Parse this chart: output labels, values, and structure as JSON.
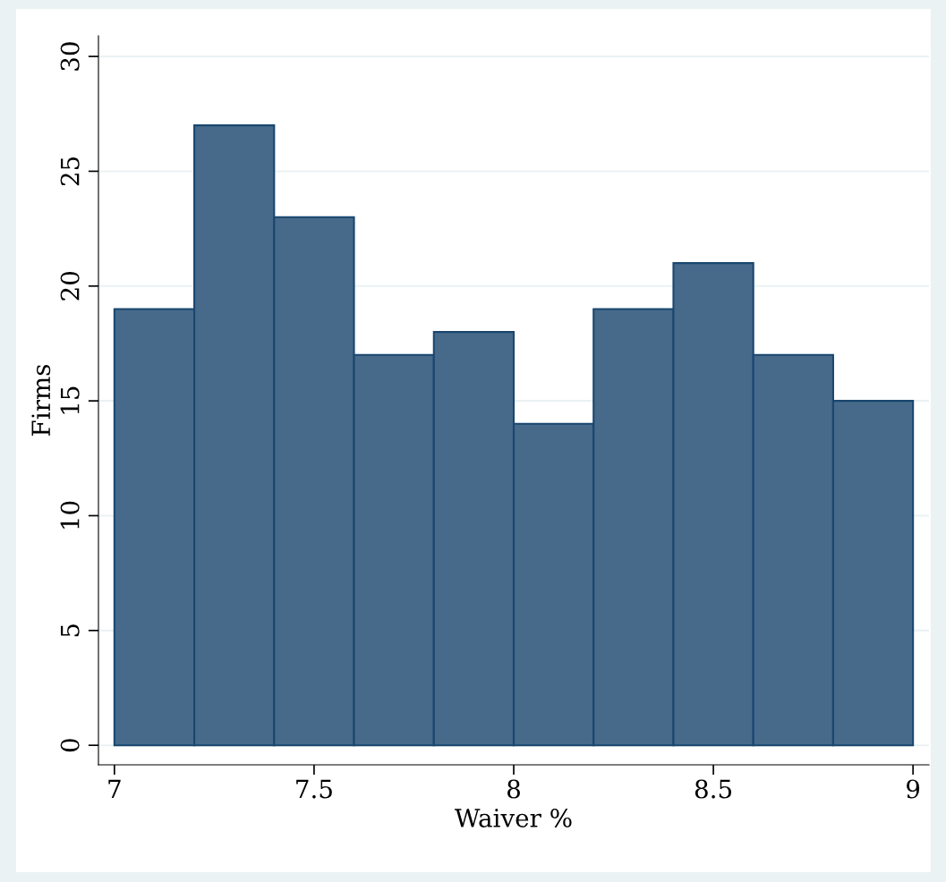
{
  "chart_data": {
    "type": "histogram",
    "xlabel": "Waiver %",
    "ylabel": "Firms",
    "bins": [
      7,
      7.2,
      7.4,
      7.6,
      7.8,
      8,
      8.2,
      8.4,
      8.6,
      8.8,
      9
    ],
    "values": [
      19,
      27,
      23,
      17,
      18,
      14,
      19,
      21,
      17,
      15
    ],
    "color": "#476a8a",
    "xlim": [
      6.96,
      9.04
    ],
    "ylim": [
      -0.85,
      30.9
    ],
    "xticks": [
      7,
      {
        "value": 7.5,
        "label": "7.5"
      },
      8,
      {
        "value": 8.5,
        "label": "8.5"
      },
      9
    ],
    "yticks": [
      0,
      5,
      10,
      15,
      20,
      25,
      30
    ],
    "grid": "y"
  }
}
